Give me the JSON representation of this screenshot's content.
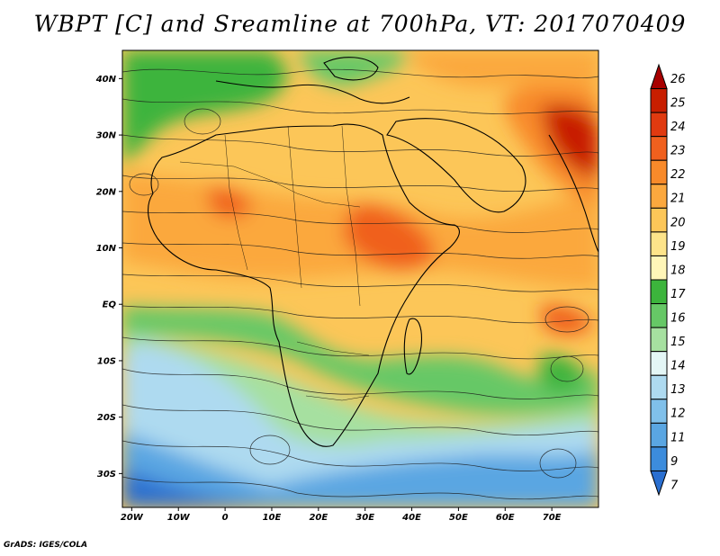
{
  "title": "WBPT [C] and Sreamline at 700hPa, VT: 2017070409",
  "credit": "GrADS: IGES/COLA",
  "lat_ticks": [
    "40N",
    "30N",
    "20N",
    "10N",
    "EQ",
    "10S",
    "20S",
    "30S"
  ],
  "lat_values": [
    40,
    30,
    20,
    10,
    0,
    -10,
    -20,
    -30
  ],
  "lon_ticks": [
    "20W",
    "10W",
    "0",
    "10E",
    "20E",
    "30E",
    "40E",
    "50E",
    "60E",
    "70E"
  ],
  "lon_values": [
    -20,
    -10,
    0,
    10,
    20,
    30,
    40,
    50,
    60,
    70
  ],
  "extent": {
    "lon_min": -22,
    "lon_max": 80,
    "lat_min": -36,
    "lat_max": 45
  },
  "colorbar": {
    "labels": [
      "26",
      "25",
      "24",
      "23",
      "22",
      "21",
      "20",
      "19",
      "18",
      "17",
      "16",
      "15",
      "14",
      "13",
      "12",
      "11",
      "9",
      "7"
    ],
    "colors": [
      "#a80000",
      "#c81e00",
      "#e03a10",
      "#f0601e",
      "#f88a2a",
      "#fba83e",
      "#fcc658",
      "#fde48a",
      "#fff6b8",
      "#3cb43c",
      "#66c866",
      "#a6e0a0",
      "#e4f6f6",
      "#aedaf0",
      "#80c0ea",
      "#5aa6e2",
      "#3c8cdc",
      "#2a6fd0"
    ]
  },
  "regions": {
    "north_africa": "#fcc658",
    "sahel_hot": "#f0601e",
    "arabia_hot": "#e03a10",
    "indian_ocean_warm": "#fba83e",
    "equatorial_green": "#3cb43c",
    "south_cool": "#aedaf0",
    "far_south": "#5aa6e2",
    "mediterranean": "#3cb43c"
  }
}
